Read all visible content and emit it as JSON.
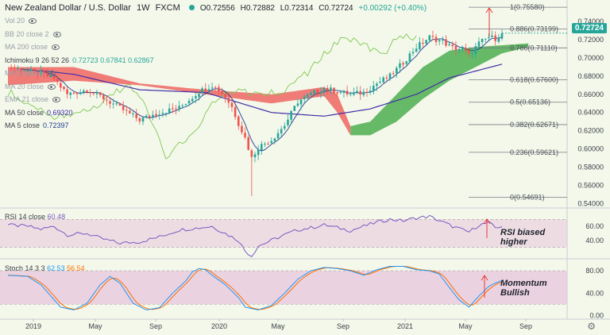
{
  "header": {
    "symbol": "New Zealand Dollar / U.S. Dollar",
    "interval": "1W",
    "source": "FXCM",
    "open": "O0.72556",
    "high": "H0.72882",
    "low": "L0.72314",
    "close": "C0.72724",
    "change": "+0.00292 (+0.40%)"
  },
  "indicators": [
    {
      "label": "Vol 20",
      "value": "",
      "faded": true
    },
    {
      "label": "BB 20 close 2",
      "value": "",
      "faded": true
    },
    {
      "label": "MA 200 close",
      "value": "",
      "faded": true
    },
    {
      "label": "Ichimoku 9 26 52 26",
      "value": "0.72723  0.67841  0.62867",
      "faded": false
    },
    {
      "label": "MA 20 close",
      "value": "",
      "faded": true
    },
    {
      "label": "MA 20 close",
      "value": "",
      "faded": true
    },
    {
      "label": "EMA 21 close",
      "value": "",
      "faded": true
    },
    {
      "label": "MA 50 close",
      "value": "0.69320",
      "faded": false
    },
    {
      "label": "MA 5 close",
      "value": "0.72397",
      "faded": false
    }
  ],
  "last_price_badge": "0.72724",
  "annotations": {
    "rsi": "RSI biased\nhigher",
    "stoch": "Momentum\nBullish"
  },
  "rsi_header": {
    "label": "RSI 14 close",
    "value": "60.48"
  },
  "stoch_header": {
    "label": "Stoch 14 3 3",
    "k": "62.53",
    "d": "56.54"
  },
  "colors": {
    "bull": "#26a69a",
    "bear": "#ef5350",
    "kumo_bull": "#4caf50",
    "kumo_bear": "#ef5350",
    "ma50": "#3f2ea8",
    "ma5": "#1e3c8c",
    "chikou": "#7ec850",
    "fib": "#787b86",
    "rsi_line": "#7e57c2",
    "stoch_k": "#2196f3",
    "stoch_d": "#ff6d00",
    "band": "#e8c6dc"
  },
  "chart_data": {
    "type": "candlestick",
    "x_ticks": [
      "2019",
      "May",
      "Sep",
      "2020",
      "May",
      "Sep",
      "2021",
      "May",
      "Sep"
    ],
    "y_ticks": [
      "0.74000",
      "0.72000",
      "0.70000",
      "0.68000",
      "0.66000",
      "0.64000",
      "0.62000",
      "0.60000",
      "0.58000",
      "0.56000",
      "0.54000"
    ],
    "ylim": [
      0.535,
      0.762
    ],
    "fibonacci": [
      {
        "label": "1(0.75580)",
        "value": 0.7558
      },
      {
        "label": "0.886(0.73199)",
        "value": 0.73199
      },
      {
        "label": "0.786(0.71110)",
        "value": 0.7111
      },
      {
        "label": "0.618(0.67600)",
        "value": 0.676
      },
      {
        "label": "0.5(0.65136)",
        "value": 0.65136
      },
      {
        "label": "0.382(0.62671)",
        "value": 0.62671
      },
      {
        "label": "0.236(0.59621)",
        "value": 0.59621
      },
      {
        "label": "0(0.54691)",
        "value": 0.54691
      }
    ],
    "anchors": [
      [
        0,
        0.69
      ],
      [
        6,
        0.686
      ],
      [
        10,
        0.683
      ],
      [
        14,
        0.677
      ],
      [
        18,
        0.66
      ],
      [
        24,
        0.665
      ],
      [
        28,
        0.658
      ],
      [
        34,
        0.645
      ],
      [
        40,
        0.632
      ],
      [
        46,
        0.64
      ],
      [
        52,
        0.645
      ],
      [
        58,
        0.663
      ],
      [
        62,
        0.67
      ],
      [
        64,
        0.665
      ],
      [
        66,
        0.657
      ],
      [
        68,
        0.646
      ],
      [
        70,
        0.628
      ],
      [
        72,
        0.612
      ],
      [
        74,
        0.59
      ],
      [
        76,
        0.602
      ],
      [
        80,
        0.61
      ],
      [
        84,
        0.626
      ],
      [
        88,
        0.652
      ],
      [
        92,
        0.66
      ],
      [
        96,
        0.667
      ],
      [
        100,
        0.663
      ],
      [
        104,
        0.66
      ],
      [
        108,
        0.662
      ],
      [
        112,
        0.672
      ],
      [
        116,
        0.68
      ],
      [
        120,
        0.695
      ],
      [
        124,
        0.712
      ],
      [
        128,
        0.723
      ],
      [
        132,
        0.718
      ],
      [
        135,
        0.711
      ],
      [
        138,
        0.71
      ],
      [
        140,
        0.703
      ],
      [
        143,
        0.716
      ],
      [
        146,
        0.723
      ],
      [
        148,
        0.7215
      ],
      [
        150,
        0.7272
      ]
    ],
    "rsi_ticks": [
      "60.00",
      "40.00"
    ],
    "rsi_ylim": [
      15,
      85
    ],
    "rsi_anchors": [
      [
        0,
        62
      ],
      [
        6,
        60
      ],
      [
        10,
        56
      ],
      [
        14,
        60
      ],
      [
        18,
        48
      ],
      [
        24,
        50
      ],
      [
        28,
        43
      ],
      [
        34,
        36
      ],
      [
        40,
        38
      ],
      [
        46,
        45
      ],
      [
        52,
        55
      ],
      [
        58,
        58
      ],
      [
        62,
        60
      ],
      [
        66,
        50
      ],
      [
        70,
        40
      ],
      [
        72,
        25
      ],
      [
        74,
        18
      ],
      [
        76,
        32
      ],
      [
        80,
        40
      ],
      [
        84,
        48
      ],
      [
        88,
        55
      ],
      [
        92,
        58
      ],
      [
        96,
        62
      ],
      [
        100,
        58
      ],
      [
        104,
        54
      ],
      [
        108,
        60
      ],
      [
        112,
        66
      ],
      [
        116,
        70
      ],
      [
        120,
        68
      ],
      [
        124,
        72
      ],
      [
        128,
        74
      ],
      [
        132,
        66
      ],
      [
        135,
        60
      ],
      [
        138,
        55
      ],
      [
        140,
        52
      ],
      [
        143,
        62
      ],
      [
        146,
        65
      ],
      [
        148,
        58
      ],
      [
        150,
        60.48
      ]
    ],
    "stoch_ticks": [
      "80.00",
      "40.00",
      "0.00"
    ],
    "stoch_ylim": [
      -5,
      100
    ],
    "stoch_band": [
      20,
      80
    ],
    "stoch_anchors": [
      [
        0,
        72
      ],
      [
        6,
        70
      ],
      [
        10,
        55
      ],
      [
        13,
        35
      ],
      [
        16,
        15
      ],
      [
        20,
        10
      ],
      [
        24,
        22
      ],
      [
        28,
        55
      ],
      [
        31,
        70
      ],
      [
        34,
        58
      ],
      [
        38,
        22
      ],
      [
        42,
        10
      ],
      [
        46,
        14
      ],
      [
        50,
        40
      ],
      [
        54,
        62
      ],
      [
        56,
        78
      ],
      [
        58,
        84
      ],
      [
        60,
        82
      ],
      [
        62,
        72
      ],
      [
        66,
        55
      ],
      [
        70,
        32
      ],
      [
        72,
        15
      ],
      [
        76,
        10
      ],
      [
        80,
        18
      ],
      [
        84,
        40
      ],
      [
        88,
        65
      ],
      [
        92,
        80
      ],
      [
        96,
        86
      ],
      [
        100,
        84
      ],
      [
        104,
        80
      ],
      [
        108,
        72
      ],
      [
        112,
        82
      ],
      [
        116,
        88
      ],
      [
        120,
        88
      ],
      [
        124,
        82
      ],
      [
        128,
        80
      ],
      [
        131,
        74
      ],
      [
        134,
        50
      ],
      [
        137,
        28
      ],
      [
        140,
        15
      ],
      [
        143,
        35
      ],
      [
        146,
        52
      ],
      [
        148,
        58
      ],
      [
        150,
        62.53
      ]
    ]
  }
}
